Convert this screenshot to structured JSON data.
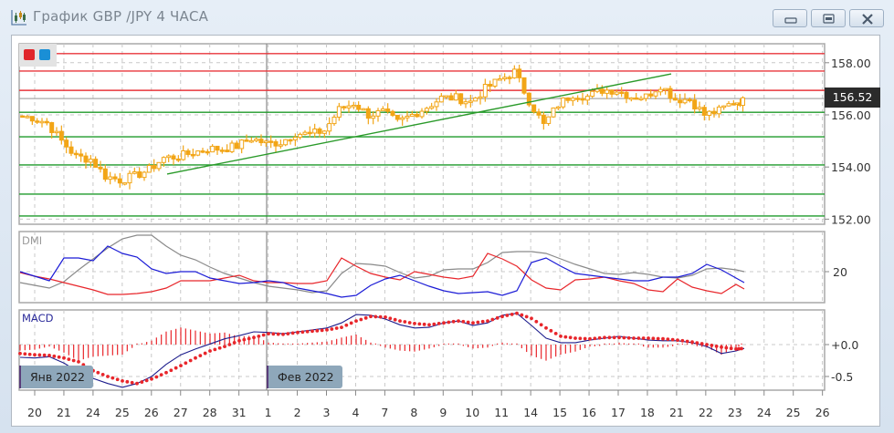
{
  "window": {
    "title": "График GBP /JPY  4 ЧАСА",
    "buttons": {
      "minimize": "minimize",
      "maximize": "maximize",
      "close": "close"
    }
  },
  "legend": {
    "colors": [
      "#e0262b",
      "#1a8fd6"
    ]
  },
  "price_axis": {
    "ticks": [
      "158.00",
      "156.00",
      "154.00",
      "152.00"
    ],
    "current_price": "156.52"
  },
  "panes": {
    "dmi": {
      "title": "DMI",
      "ticks": [
        "20"
      ]
    },
    "macd": {
      "title": "MACD",
      "ticks": [
        "+0.0",
        "-0.5"
      ]
    }
  },
  "months": [
    "Янв 2022",
    "Фев 2022"
  ],
  "x_axis": {
    "ticks": [
      "20",
      "21",
      "24",
      "25",
      "26",
      "27",
      "28",
      "31",
      "1",
      "2",
      "3",
      "4",
      "7",
      "8",
      "9",
      "10",
      "11",
      "14",
      "15",
      "16",
      "17",
      "18",
      "21",
      "22",
      "23",
      "24",
      "25",
      "26"
    ]
  },
  "chart_data": {
    "type": "candlestick",
    "instrument": "GBP/JPY",
    "timeframe": "4 ЧАСА",
    "ylim": [
      151.8,
      158.7
    ],
    "price_path_close_12h": [
      155.96,
      155.9,
      155.7,
      155.0,
      154.4,
      154.3,
      153.65,
      153.5,
      153.65,
      153.9,
      154.35,
      154.4,
      154.55,
      154.7,
      154.7,
      154.8,
      155.1,
      154.9,
      154.95,
      155.3,
      155.25,
      155.4,
      156.2,
      156.45,
      156.0,
      156.1,
      155.7,
      156.0,
      156.3,
      156.65,
      156.65,
      156.5,
      157.0,
      157.35,
      157.65,
      156.55,
      155.6,
      156.4,
      156.8,
      156.7,
      156.95,
      156.95,
      156.7,
      156.7,
      157.15,
      156.6,
      156.6,
      156.0,
      156.15,
      156.5,
      156.52
    ],
    "levels": {
      "red": [
        158.35,
        157.68,
        156.94
      ],
      "green": [
        156.1,
        155.16,
        154.08,
        152.96,
        152.12
      ],
      "colors": {
        "red": "#e8363b",
        "green": "#1f9a2a",
        "candle": "#f2a516",
        "current_price_line": "#a8a8a8"
      }
    },
    "trendline": {
      "from": {
        "date": "26 Jan",
        "price": 153.73
      },
      "to": {
        "date": "18 Feb",
        "price": 157.57
      },
      "color": "#2a9a2a"
    },
    "dmi": {
      "ylim": [
        3.5,
        42
      ],
      "plus_di": [
        20,
        17.5,
        15,
        27.5,
        27.5,
        26,
        34,
        30,
        28,
        21.5,
        19,
        20,
        20,
        16.5,
        15,
        13.5,
        14,
        15,
        14,
        11,
        9.5,
        8,
        6,
        7,
        12.5,
        16,
        18,
        15,
        12,
        9.5,
        8,
        8.5,
        9,
        7,
        9.5,
        25,
        27.5,
        23,
        19,
        18,
        17,
        16,
        15,
        15,
        17,
        17,
        19,
        24,
        21,
        16.5,
        14
      ],
      "minus_di": [
        19.5,
        17.5,
        16,
        14,
        12,
        10,
        7.5,
        7.5,
        8,
        9,
        11,
        15,
        15,
        15,
        16.5,
        18,
        15,
        14,
        14,
        13.5,
        13.5,
        15,
        27.5,
        23,
        19,
        17,
        15.5,
        20,
        18.5,
        17,
        16,
        17.5,
        30,
        27,
        23,
        15.5,
        11,
        10,
        15.5,
        16,
        17,
        15,
        13.5,
        10,
        9,
        16,
        11.5,
        9.5,
        8,
        13,
        10.5
      ],
      "adx": [
        14,
        12.5,
        11,
        14.5,
        21,
        27,
        33,
        38,
        40,
        40,
        34,
        29,
        26.5,
        22.5,
        19,
        16.5,
        14,
        12,
        11,
        10,
        8.5,
        9.5,
        19,
        24.5,
        24,
        23,
        19.5,
        16.5,
        17.5,
        21,
        21.5,
        21.5,
        25,
        30.5,
        31,
        31,
        30,
        27,
        24,
        21.5,
        19,
        18.5,
        19.5,
        18.5,
        17,
        16.5,
        18,
        21.5,
        22,
        21,
        20
      ],
      "colors": {
        "plus_di": "#1b1bd6",
        "minus_di": "#e8262b",
        "adx": "#8a8a8a"
      }
    },
    "macd": {
      "ylim": [
        -0.72,
        0.55
      ],
      "macd": [
        -0.2,
        -0.21,
        -0.19,
        -0.29,
        -0.43,
        -0.53,
        -0.61,
        -0.67,
        -0.61,
        -0.5,
        -0.31,
        -0.16,
        -0.07,
        0.01,
        0.09,
        0.14,
        0.2,
        0.19,
        0.17,
        0.2,
        0.23,
        0.26,
        0.34,
        0.47,
        0.46,
        0.4,
        0.31,
        0.26,
        0.27,
        0.34,
        0.37,
        0.3,
        0.34,
        0.46,
        0.49,
        0.3,
        0.1,
        0.03,
        0.03,
        0.07,
        0.1,
        0.13,
        0.1,
        0.07,
        0.06,
        0.06,
        0.03,
        -0.03,
        -0.14,
        -0.1,
        -0.06
      ],
      "signal": [
        -0.14,
        -0.16,
        -0.17,
        -0.21,
        -0.27,
        -0.41,
        -0.5,
        -0.57,
        -0.61,
        -0.54,
        -0.44,
        -0.33,
        -0.21,
        -0.1,
        -0.03,
        0.06,
        0.11,
        0.17,
        0.16,
        0.19,
        0.21,
        0.23,
        0.27,
        0.37,
        0.44,
        0.43,
        0.37,
        0.33,
        0.31,
        0.34,
        0.37,
        0.34,
        0.37,
        0.44,
        0.49,
        0.41,
        0.26,
        0.13,
        0.1,
        0.09,
        0.11,
        0.11,
        0.1,
        0.1,
        0.09,
        0.07,
        0.04,
        0,
        -0.04,
        -0.07,
        -0.06
      ],
      "colors": {
        "macd": "#1c1c8c",
        "signal": "#e8262b",
        "histogram": "#e8262b"
      }
    }
  }
}
